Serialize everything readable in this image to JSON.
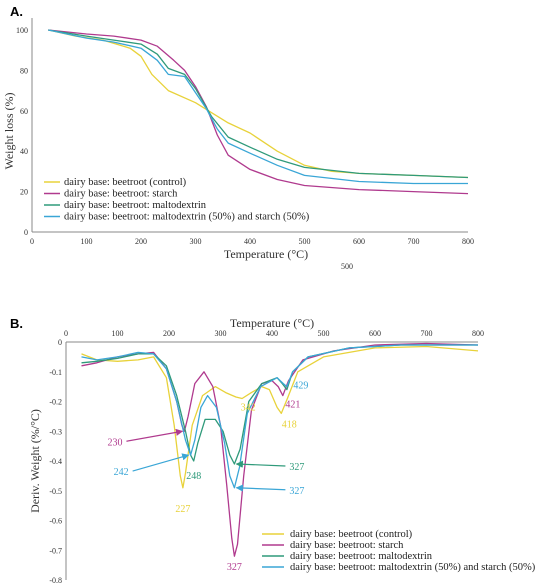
{
  "panels": {
    "a_label": "A.",
    "b_label": "B.",
    "stray_label": "500"
  },
  "colors": {
    "control": "#e8d23a",
    "starch": "#b03a8e",
    "maltodextrin": "#2f9a7a",
    "mix": "#3aa6d6"
  },
  "chart_data": [
    {
      "type": "line",
      "title": "",
      "xlabel": "Temperature (°C)",
      "ylabel": "Weight loss (%)",
      "xlim": [
        0,
        800
      ],
      "ylim": [
        0,
        100
      ],
      "xticks": [
        "0",
        "100",
        "200",
        "300",
        "400",
        "500",
        "600",
        "700",
        "800"
      ],
      "yticks": [
        "0",
        "20",
        "40",
        "60",
        "80",
        "100"
      ],
      "grid": false,
      "legend_placement": "lower-left",
      "series": [
        {
          "name": "dairy base: beetroot (control)",
          "color_key": "control",
          "points": [
            [
              30,
              100
            ],
            [
              80,
              97
            ],
            [
              130,
              95
            ],
            [
              180,
              91
            ],
            [
              200,
              87
            ],
            [
              220,
              78
            ],
            [
              250,
              70
            ],
            [
              300,
              64
            ],
            [
              330,
              59
            ],
            [
              360,
              54
            ],
            [
              400,
              49
            ],
            [
              450,
              40
            ],
            [
              500,
              33
            ],
            [
              550,
              30
            ],
            [
              600,
              29
            ],
            [
              700,
              28
            ],
            [
              800,
              27
            ]
          ]
        },
        {
          "name": "dairy base: beetroot: starch",
          "color_key": "starch",
          "points": [
            [
              30,
              100
            ],
            [
              100,
              98
            ],
            [
              150,
              97
            ],
            [
              200,
              95
            ],
            [
              230,
              92
            ],
            [
              260,
              85
            ],
            [
              280,
              80
            ],
            [
              300,
              72
            ],
            [
              320,
              62
            ],
            [
              340,
              48
            ],
            [
              360,
              38
            ],
            [
              400,
              31
            ],
            [
              450,
              26
            ],
            [
              500,
              23
            ],
            [
              600,
              21
            ],
            [
              700,
              20
            ],
            [
              800,
              19
            ]
          ]
        },
        {
          "name": "dairy base: beetroot: maltodextrin",
          "color_key": "maltodextrin",
          "points": [
            [
              30,
              100
            ],
            [
              100,
              97
            ],
            [
              150,
              95
            ],
            [
              200,
              93
            ],
            [
              230,
              88
            ],
            [
              250,
              81
            ],
            [
              280,
              78
            ],
            [
              300,
              71
            ],
            [
              330,
              57
            ],
            [
              360,
              47
            ],
            [
              400,
              42
            ],
            [
              450,
              36
            ],
            [
              500,
              32
            ],
            [
              600,
              29
            ],
            [
              700,
              28
            ],
            [
              800,
              27
            ]
          ]
        },
        {
          "name": "dairy base: beetroot: maltodextrin (50%) and starch (50%)",
          "color_key": "mix",
          "points": [
            [
              30,
              100
            ],
            [
              100,
              96
            ],
            [
              150,
              94
            ],
            [
              200,
              91
            ],
            [
              230,
              85
            ],
            [
              250,
              78
            ],
            [
              280,
              77
            ],
            [
              300,
              69
            ],
            [
              320,
              61
            ],
            [
              340,
              51
            ],
            [
              360,
              44
            ],
            [
              400,
              39
            ],
            [
              450,
              33
            ],
            [
              500,
              28
            ],
            [
              600,
              25
            ],
            [
              700,
              24
            ],
            [
              800,
              24
            ]
          ]
        }
      ]
    },
    {
      "type": "line",
      "title": "",
      "xlabel": "Temperature (°C)",
      "ylabel": "Deriv. Weight (%/°C)",
      "xlim": [
        0,
        800
      ],
      "ylim": [
        -0.8,
        0
      ],
      "xticks": [
        "0",
        "100",
        "200",
        "300",
        "400",
        "500",
        "600",
        "700",
        "800"
      ],
      "yticks": [
        "0",
        "-0.1",
        "-0.2",
        "-0.3",
        "-0.4",
        "-0.5",
        "-0.6",
        "-0.7",
        "-0.8"
      ],
      "grid": false,
      "legend_placement": "lower-right",
      "series": [
        {
          "name": "dairy base: beetroot (control)",
          "color_key": "control",
          "points": [
            [
              30,
              -0.04
            ],
            [
              60,
              -0.06
            ],
            [
              100,
              -0.065
            ],
            [
              140,
              -0.06
            ],
            [
              170,
              -0.05
            ],
            [
              195,
              -0.12
            ],
            [
              210,
              -0.28
            ],
            [
              222,
              -0.45
            ],
            [
              227,
              -0.49
            ],
            [
              232,
              -0.44
            ],
            [
              245,
              -0.28
            ],
            [
              265,
              -0.18
            ],
            [
              290,
              -0.15
            ],
            [
              310,
              -0.17
            ],
            [
              330,
              -0.185
            ],
            [
              342,
              -0.19
            ],
            [
              360,
              -0.17
            ],
            [
              380,
              -0.15
            ],
            [
              395,
              -0.16
            ],
            [
              410,
              -0.22
            ],
            [
              418,
              -0.24
            ],
            [
              430,
              -0.19
            ],
            [
              450,
              -0.1
            ],
            [
              500,
              -0.05
            ],
            [
              600,
              -0.02
            ],
            [
              700,
              -0.015
            ],
            [
              800,
              -0.03
            ]
          ]
        },
        {
          "name": "dairy base: beetroot: starch",
          "color_key": "starch",
          "points": [
            [
              30,
              -0.08
            ],
            [
              60,
              -0.07
            ],
            [
              100,
              -0.05
            ],
            [
              140,
              -0.04
            ],
            [
              170,
              -0.035
            ],
            [
              195,
              -0.09
            ],
            [
              215,
              -0.2
            ],
            [
              225,
              -0.28
            ],
            [
              230,
              -0.3
            ],
            [
              237,
              -0.25
            ],
            [
              250,
              -0.14
            ],
            [
              268,
              -0.1
            ],
            [
              285,
              -0.15
            ],
            [
              300,
              -0.28
            ],
            [
              312,
              -0.48
            ],
            [
              322,
              -0.66
            ],
            [
              327,
              -0.72
            ],
            [
              333,
              -0.68
            ],
            [
              345,
              -0.45
            ],
            [
              360,
              -0.23
            ],
            [
              380,
              -0.14
            ],
            [
              400,
              -0.13
            ],
            [
              412,
              -0.15
            ],
            [
              421,
              -0.18
            ],
            [
              432,
              -0.13
            ],
            [
              460,
              -0.06
            ],
            [
              520,
              -0.03
            ],
            [
              600,
              -0.01
            ],
            [
              700,
              -0.005
            ],
            [
              800,
              -0.01
            ]
          ]
        },
        {
          "name": "dairy base: beetroot: maltodextrin",
          "color_key": "maltodextrin",
          "points": [
            [
              30,
              -0.07
            ],
            [
              60,
              -0.065
            ],
            [
              100,
              -0.055
            ],
            [
              140,
              -0.04
            ],
            [
              170,
              -0.04
            ],
            [
              195,
              -0.08
            ],
            [
              215,
              -0.18
            ],
            [
              232,
              -0.3
            ],
            [
              242,
              -0.38
            ],
            [
              248,
              -0.4
            ],
            [
              256,
              -0.34
            ],
            [
              270,
              -0.26
            ],
            [
              290,
              -0.26
            ],
            [
              305,
              -0.3
            ],
            [
              318,
              -0.38
            ],
            [
              327,
              -0.41
            ],
            [
              338,
              -0.36
            ],
            [
              355,
              -0.2
            ],
            [
              380,
              -0.14
            ],
            [
              410,
              -0.12
            ],
            [
              420,
              -0.14
            ],
            [
              429,
              -0.16
            ],
            [
              440,
              -0.1
            ],
            [
              470,
              -0.05
            ],
            [
              550,
              -0.02
            ],
            [
              650,
              -0.01
            ],
            [
              800,
              -0.01
            ]
          ]
        },
        {
          "name": "dairy base: beetroot: maltodextrin (50%) and starch (50%)",
          "color_key": "mix",
          "points": [
            [
              30,
              -0.05
            ],
            [
              60,
              -0.06
            ],
            [
              100,
              -0.05
            ],
            [
              140,
              -0.035
            ],
            [
              170,
              -0.04
            ],
            [
              195,
              -0.09
            ],
            [
              215,
              -0.2
            ],
            [
              232,
              -0.33
            ],
            [
              242,
              -0.38
            ],
            [
              250,
              -0.33
            ],
            [
              262,
              -0.22
            ],
            [
              275,
              -0.18
            ],
            [
              292,
              -0.22
            ],
            [
              308,
              -0.34
            ],
            [
              318,
              -0.45
            ],
            [
              327,
              -0.49
            ],
            [
              337,
              -0.42
            ],
            [
              352,
              -0.24
            ],
            [
              378,
              -0.15
            ],
            [
              410,
              -0.12
            ],
            [
              422,
              -0.14
            ],
            [
              429,
              -0.15
            ],
            [
              440,
              -0.1
            ],
            [
              470,
              -0.05
            ],
            [
              550,
              -0.02
            ],
            [
              650,
              -0.01
            ],
            [
              800,
              -0.01
            ]
          ]
        }
      ],
      "annotations": [
        {
          "text": "230",
          "color_key": "starch",
          "x": 230,
          "y": -0.3
        },
        {
          "text": "242",
          "color_key": "mix",
          "x": 242,
          "y": -0.38
        },
        {
          "text": "248",
          "color_key": "maltodextrin",
          "x": 248,
          "y": -0.4
        },
        {
          "text": "227",
          "color_key": "control",
          "x": 227,
          "y": -0.49
        },
        {
          "text": "327",
          "color_key": "starch",
          "x": 327,
          "y": -0.72
        },
        {
          "text": "342",
          "color_key": "control",
          "x": 342,
          "y": -0.19
        },
        {
          "text": "327",
          "color_key": "maltodextrin",
          "x": 327,
          "y": -0.41
        },
        {
          "text": "327",
          "color_key": "mix",
          "x": 327,
          "y": -0.49
        },
        {
          "text": "418",
          "color_key": "control",
          "x": 418,
          "y": -0.24
        },
        {
          "text": "421",
          "color_key": "starch",
          "x": 421,
          "y": -0.18
        },
        {
          "text": "429",
          "color_key": "mix",
          "x": 429,
          "y": -0.15
        }
      ]
    }
  ]
}
